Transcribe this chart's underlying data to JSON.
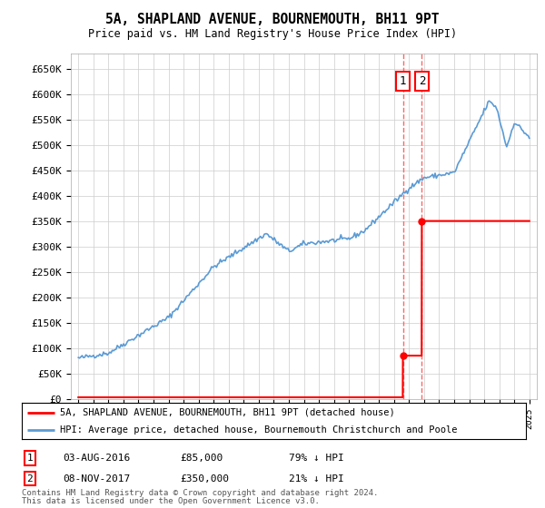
{
  "title": "5A, SHAPLAND AVENUE, BOURNEMOUTH, BH11 9PT",
  "subtitle": "Price paid vs. HM Land Registry's House Price Index (HPI)",
  "legend_line1": "5A, SHAPLAND AVENUE, BOURNEMOUTH, BH11 9PT (detached house)",
  "legend_line2": "HPI: Average price, detached house, Bournemouth Christchurch and Poole",
  "note1": "Contains HM Land Registry data © Crown copyright and database right 2024.",
  "note2": "This data is licensed under the Open Government Licence v3.0.",
  "table_rows": [
    {
      "num": "1",
      "date": "03-AUG-2016",
      "price": "£85,000",
      "pct": "79% ↓ HPI"
    },
    {
      "num": "2",
      "date": "08-NOV-2017",
      "price": "£350,000",
      "pct": "21% ↓ HPI"
    }
  ],
  "vline1_year": 2016.59,
  "vline2_year": 2017.85,
  "point1_year": 2016.59,
  "point1_price": 85000,
  "point2_year": 2017.85,
  "point2_price": 350000,
  "hpi_color": "#5b9bd5",
  "price_color": "#ff0000",
  "vline_color": "#ff6666",
  "ylim_min": 0,
  "ylim_max": 680000,
  "xlim_min": 1994.5,
  "xlim_max": 2025.5
}
